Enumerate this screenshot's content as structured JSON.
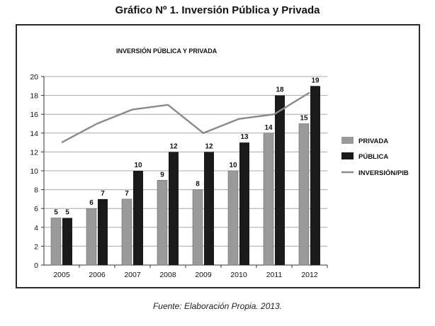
{
  "page": {
    "title": "Gráfico Nº 1. Inversión Pública y Privada",
    "source": "Fuente: Elaboración Propia. 2013."
  },
  "chart_data": {
    "type": "bar",
    "title": "INVERSIÓN PÚBLICA Y PRIVADA",
    "categories": [
      "2005",
      "2006",
      "2007",
      "2008",
      "2009",
      "2010",
      "2011",
      "2012"
    ],
    "series": [
      {
        "name": "PRIVADA",
        "kind": "bar",
        "color": "#9a9a9a",
        "values": [
          5,
          6,
          7,
          9,
          8,
          10,
          14,
          15
        ]
      },
      {
        "name": "PÚBLICA",
        "kind": "bar",
        "color": "#1a1a1a",
        "values": [
          5,
          7,
          10,
          12,
          12,
          13,
          18,
          19
        ]
      },
      {
        "name": "INVERSIÓN/PIB",
        "kind": "line",
        "color": "#8a8a8a",
        "values": [
          13,
          15,
          16.5,
          17,
          14,
          15.5,
          16,
          18.3
        ]
      }
    ],
    "ylim": [
      0,
      20
    ],
    "yticks": [
      0,
      2,
      4,
      6,
      8,
      10,
      12,
      14,
      16,
      18,
      20
    ],
    "grid": true,
    "legend_position": "right",
    "xlabel": "",
    "ylabel": ""
  }
}
